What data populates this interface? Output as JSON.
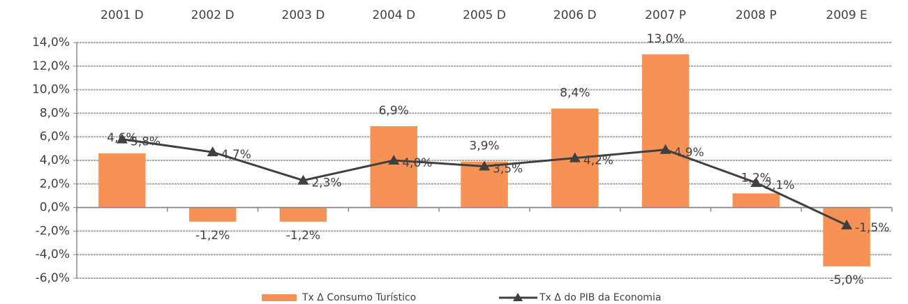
{
  "chart_data": {
    "type": "bar",
    "categories": [
      "2001 D",
      "2002 D",
      "2003 D",
      "2004 D",
      "2005 D",
      "2006 D",
      "2007 P",
      "2008 P",
      "2009 E"
    ],
    "series": [
      {
        "name": "Tx Δ Consumo Turístico",
        "type": "bar",
        "color": "#f79256",
        "values": [
          4.6,
          -1.2,
          -1.2,
          6.9,
          3.9,
          8.4,
          13.0,
          1.2,
          -5.0
        ],
        "value_labels": [
          "4,6%",
          "-1,2%",
          "-1,2%",
          "6,9%",
          "3,9%",
          "8,4%",
          "13,0%",
          "1,2%",
          "-5,0%"
        ]
      },
      {
        "name": "Tx Δ do PIB da Economia",
        "type": "line",
        "color": "#404040",
        "values": [
          5.8,
          4.7,
          2.3,
          4.0,
          3.5,
          4.2,
          4.9,
          2.1,
          -1.5
        ],
        "value_labels": [
          "5,8%",
          "4,7%",
          "2,3%",
          "4,0%",
          "3,5%",
          "4,2%",
          "4,9%",
          "2,1%",
          "-1,5%"
        ]
      }
    ],
    "ylim": [
      -6,
      14
    ],
    "yticks": [
      {
        "value": -6,
        "label": "-6,0%"
      },
      {
        "value": -4,
        "label": "-4,0%"
      },
      {
        "value": -2,
        "label": "-2,0%"
      },
      {
        "value": 0,
        "label": "0,0%"
      },
      {
        "value": 2,
        "label": "2,0%"
      },
      {
        "value": 4,
        "label": "4,0%"
      },
      {
        "value": 6,
        "label": "6,0%"
      },
      {
        "value": 8,
        "label": "8,0%"
      },
      {
        "value": 10,
        "label": "10,0%"
      },
      {
        "value": 12,
        "label": "12,0%"
      },
      {
        "value": 14,
        "label": "14,0%"
      }
    ],
    "grid": true,
    "legend": "bottom"
  }
}
